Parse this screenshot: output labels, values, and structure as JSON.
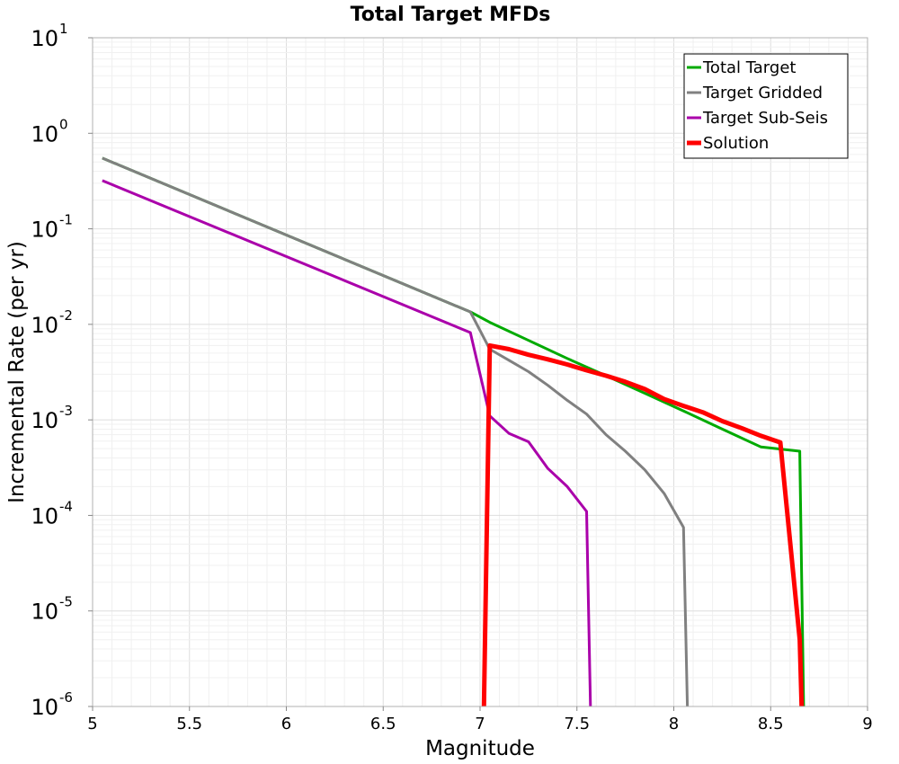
{
  "chart_data": {
    "type": "line",
    "title": "Total Target MFDs",
    "xlabel": "Magnitude",
    "ylabel": "Incremental Rate (per yr)",
    "xlim": [
      5,
      9
    ],
    "ylim": [
      1e-06,
      10
    ],
    "yscale": "log",
    "x_ticks": [
      "5",
      "5.5",
      "6",
      "6.5",
      "7",
      "7.5",
      "8",
      "8.5",
      "9"
    ],
    "y_ticks": [
      {
        "base": "10",
        "exp": "1"
      },
      {
        "base": "10",
        "exp": "0"
      },
      {
        "base": "10",
        "exp": "-1"
      },
      {
        "base": "10",
        "exp": "-2"
      },
      {
        "base": "10",
        "exp": "-3"
      },
      {
        "base": "10",
        "exp": "-4"
      },
      {
        "base": "10",
        "exp": "-5"
      },
      {
        "base": "10",
        "exp": "-6"
      }
    ],
    "grid": true,
    "legend_position": "top-right",
    "series": [
      {
        "name": "Total Target",
        "color": "#00aa00",
        "x": [
          5.05,
          6.95,
          7.05,
          7.25,
          7.45,
          7.65,
          7.85,
          8.05,
          8.25,
          8.45,
          8.65,
          8.67
        ],
        "y": [
          0.55,
          0.0135,
          0.0105,
          0.0068,
          0.0044,
          0.0029,
          0.0019,
          0.00124,
          0.0008,
          0.00052,
          0.00047,
          1e-06
        ]
      },
      {
        "name": "Target Gridded",
        "color": "#808080",
        "x": [
          5.05,
          6.95,
          7.05,
          7.15,
          7.25,
          7.35,
          7.45,
          7.55,
          7.65,
          7.75,
          7.85,
          7.95,
          8.05,
          8.07
        ],
        "y": [
          0.55,
          0.0135,
          0.0055,
          0.0042,
          0.0032,
          0.0023,
          0.0016,
          0.00115,
          0.0007,
          0.00047,
          0.0003,
          0.00017,
          7.5e-05,
          1e-06
        ]
      },
      {
        "name": "Target Sub-Seis",
        "color": "#aa00aa",
        "x": [
          5.05,
          6.95,
          7.05,
          7.15,
          7.25,
          7.35,
          7.45,
          7.55,
          7.57
        ],
        "y": [
          0.32,
          0.0082,
          0.0011,
          0.00072,
          0.00059,
          0.00031,
          0.0002,
          0.00011,
          1e-06
        ]
      },
      {
        "name": "Solution",
        "color": "#ff0000",
        "x": [
          7.02,
          7.05,
          7.15,
          7.25,
          7.35,
          7.45,
          7.55,
          7.65,
          7.75,
          7.85,
          7.95,
          8.05,
          8.15,
          8.25,
          8.35,
          8.45,
          8.55,
          8.65,
          8.66
        ],
        "y": [
          1e-06,
          0.006,
          0.0055,
          0.0048,
          0.0043,
          0.0038,
          0.0033,
          0.0029,
          0.0025,
          0.0021,
          0.00165,
          0.0014,
          0.0012,
          0.00097,
          0.00082,
          0.00068,
          0.00058,
          5e-06,
          1e-06
        ]
      }
    ]
  }
}
